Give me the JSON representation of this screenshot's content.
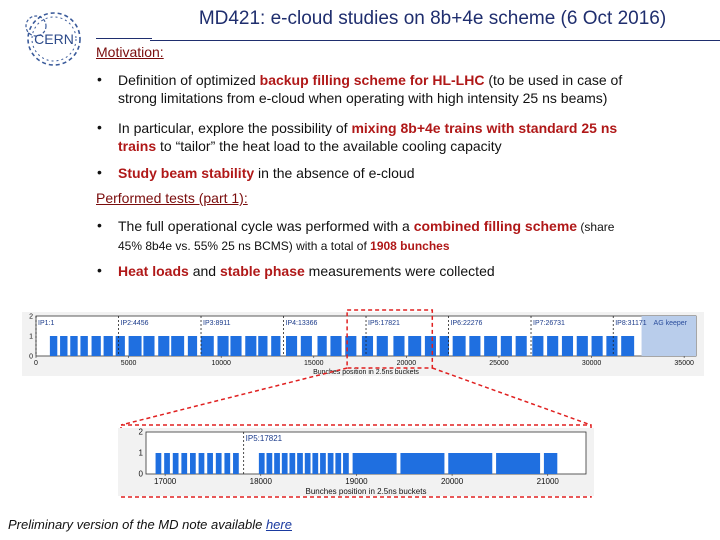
{
  "header": {
    "logo_text": "CERN",
    "title": "MD421: e-cloud studies on 8b+4e scheme (6 Oct 2016)"
  },
  "motivation": {
    "heading": "Motivation:",
    "b1": {
      "t1": "Definition of optimized ",
      "h1": "backup filling scheme for HL-LHC",
      "t2": " (to be used in case of",
      "line2": "strong limitations from e-cloud when operating with high intensity 25 ns beams)"
    },
    "b2": {
      "t1": "In particular, explore the possibility of ",
      "h1": "mixing 8b+4e trains with standard 25 ns",
      "h2": "trains",
      "t2": " to “tailor” the heat load to the available cooling capacity"
    },
    "b3": {
      "h1": "Study beam stability",
      "t1": " in the absence of e-cloud"
    }
  },
  "tests": {
    "heading": "Performed tests (part 1):",
    "b1": {
      "t1": "The full operational cycle was performed with a ",
      "h1": "combined filling scheme",
      "t2": " (share",
      "line2": "45% 8b4e vs. 55% 25 ns BCMS) with a total of ",
      "h2": "1908 bunches"
    },
    "b2": {
      "h1": "Heat loads",
      "t1": " and ",
      "h2": "stable phase",
      "t2": " measurements were collected"
    }
  },
  "chart_data": [
    {
      "type": "bar",
      "title": "",
      "xlabel": "Bunches position in 2.5ns buckets",
      "ylabel": "",
      "xlim": [
        0,
        35640
      ],
      "ylim": [
        0,
        2
      ],
      "x_ticks": [
        0,
        5000,
        10000,
        15000,
        20000,
        25000,
        30000,
        35000
      ],
      "y_ticks": [
        0,
        1,
        2
      ],
      "annotations": [
        {
          "label": "IP1:1",
          "x": 1
        },
        {
          "label": "IP2:4456",
          "x": 4456
        },
        {
          "label": "IP3:8911",
          "x": 8911
        },
        {
          "label": "IP4:13366",
          "x": 13366
        },
        {
          "label": "IP5:17821",
          "x": 17821
        },
        {
          "label": "IP6:22276",
          "x": 22276
        },
        {
          "label": "IP7:26731",
          "x": 26731
        },
        {
          "label": "IP8:31171",
          "x": 31171
        }
      ],
      "abort_gap_label": "AG keeper",
      "abort_gap": [
        32700,
        35640
      ],
      "trains": [
        [
          750,
          1150
        ],
        [
          1300,
          1700
        ],
        [
          1850,
          2250
        ],
        [
          2400,
          2800
        ],
        [
          3000,
          3500
        ],
        [
          3650,
          4150
        ],
        [
          4300,
          4800
        ],
        [
          5000,
          5700
        ],
        [
          5800,
          6400
        ],
        [
          6600,
          7200
        ],
        [
          7300,
          8000
        ],
        [
          8200,
          8700
        ],
        [
          8900,
          9600
        ],
        [
          9800,
          10400
        ],
        [
          10500,
          11100
        ],
        [
          11300,
          11900
        ],
        [
          12000,
          12500
        ],
        [
          12700,
          13200
        ],
        [
          13500,
          14100
        ],
        [
          14300,
          14900
        ],
        [
          15200,
          15700
        ],
        [
          15900,
          16500
        ],
        [
          16700,
          17300
        ],
        [
          17600,
          18200
        ],
        [
          18400,
          19000
        ],
        [
          19300,
          19900
        ],
        [
          20100,
          20800
        ],
        [
          21000,
          21600
        ],
        [
          21800,
          22300
        ],
        [
          22500,
          23200
        ],
        [
          23400,
          24000
        ],
        [
          24200,
          24900
        ],
        [
          25100,
          25700
        ],
        [
          25900,
          26500
        ],
        [
          26800,
          27400
        ],
        [
          27600,
          28200
        ],
        [
          28400,
          29000
        ],
        [
          29200,
          29800
        ],
        [
          30000,
          30600
        ],
        [
          30800,
          31400
        ],
        [
          31600,
          32300
        ]
      ]
    },
    {
      "type": "bar",
      "title": "",
      "xlabel": "Bunches position in 2.5ns buckets",
      "ylabel": "",
      "xlim": [
        16800,
        21400
      ],
      "ylim": [
        0,
        2
      ],
      "x_ticks": [
        17000,
        18000,
        19000,
        20000,
        21000
      ],
      "y_ticks": [
        0,
        1,
        2
      ],
      "annotations": [
        {
          "label": "IP5:17821",
          "x": 17821
        }
      ],
      "trains": [
        [
          16900,
          16960
        ],
        [
          16990,
          17050
        ],
        [
          17080,
          17140
        ],
        [
          17170,
          17230
        ],
        [
          17260,
          17320
        ],
        [
          17350,
          17410
        ],
        [
          17440,
          17500
        ],
        [
          17530,
          17590
        ],
        [
          17620,
          17680
        ],
        [
          17710,
          17770
        ],
        [
          17980,
          18040
        ],
        [
          18060,
          18120
        ],
        [
          18140,
          18200
        ],
        [
          18220,
          18280
        ],
        [
          18300,
          18360
        ],
        [
          18380,
          18440
        ],
        [
          18460,
          18520
        ],
        [
          18540,
          18600
        ],
        [
          18620,
          18680
        ],
        [
          18700,
          18760
        ],
        [
          18780,
          18840
        ],
        [
          18860,
          18920
        ],
        [
          18960,
          19420
        ],
        [
          19460,
          19920
        ],
        [
          19960,
          20420
        ],
        [
          20460,
          20920
        ],
        [
          20960,
          21100
        ]
      ]
    }
  ],
  "footer": {
    "text": "Preliminary version of the MD note available ",
    "link": "here"
  }
}
